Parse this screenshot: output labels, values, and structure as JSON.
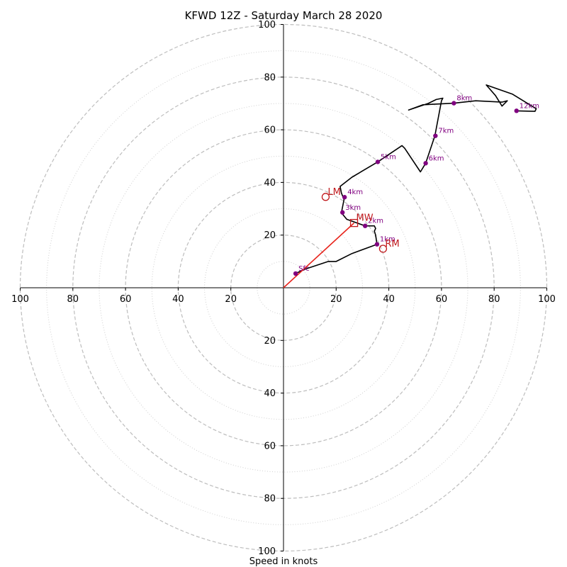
{
  "chart_data": {
    "type": "hodograph",
    "title": "KFWD 12Z - Saturday March 28 2020",
    "xlabel": "Speed in knots",
    "units": "knots",
    "ylim": [
      -100,
      100
    ],
    "xlim": [
      -100,
      100
    ],
    "major_rings": [
      20,
      40,
      60,
      80,
      100
    ],
    "minor_rings": [
      10,
      30,
      50,
      70,
      90
    ],
    "tick_values": [
      20,
      40,
      60,
      80,
      100
    ],
    "grid": true,
    "hodograph": [
      [
        4.6,
        5.4
      ],
      [
        8,
        7
      ],
      [
        17,
        10
      ],
      [
        20,
        10
      ],
      [
        26,
        13
      ],
      [
        35.5,
        16.5
      ],
      [
        35,
        20
      ],
      [
        34.5,
        21.5
      ],
      [
        35,
        22.5
      ],
      [
        34.5,
        23.5
      ],
      [
        31,
        23.5
      ],
      [
        24,
        26
      ],
      [
        22,
        28.5
      ],
      [
        23,
        33.5
      ],
      [
        22,
        36
      ],
      [
        21.5,
        38.5
      ],
      [
        26,
        42
      ],
      [
        35.8,
        47.8
      ],
      [
        45,
        54
      ],
      [
        46,
        53
      ],
      [
        52,
        44
      ],
      [
        54,
        47.3
      ],
      [
        57.5,
        57.7
      ],
      [
        60,
        71
      ],
      [
        60.5,
        72
      ],
      [
        58,
        71.5
      ],
      [
        55,
        70
      ],
      [
        47.5,
        67.5
      ],
      [
        53,
        69.5
      ],
      [
        64.7,
        70.1
      ],
      [
        73,
        71
      ],
      [
        83,
        70.5
      ],
      [
        85,
        71
      ],
      [
        83,
        69
      ],
      [
        80.5,
        73
      ],
      [
        77,
        77
      ],
      [
        87,
        73.5
      ],
      [
        96,
        68
      ],
      [
        95.5,
        67
      ],
      [
        88.5,
        67.2
      ]
    ],
    "height_points": [
      {
        "label": "Sfc",
        "u": 4.6,
        "v": 5.4
      },
      {
        "label": "1km",
        "u": 35.5,
        "v": 16.5
      },
      {
        "label": "2km",
        "u": 31,
        "v": 23.5
      },
      {
        "label": "3km",
        "u": 22.4,
        "v": 28.6
      },
      {
        "label": "4km",
        "u": 23.2,
        "v": 34.4
      },
      {
        "label": "5km",
        "u": 35.8,
        "v": 47.8
      },
      {
        "label": "6km",
        "u": 54,
        "v": 47.3
      },
      {
        "label": "7km",
        "u": 57.7,
        "v": 57.7
      },
      {
        "label": "8km",
        "u": 64.7,
        "v": 70.1
      },
      {
        "label": "12km",
        "u": 88.5,
        "v": 67.2
      }
    ],
    "storm_motion": [
      {
        "label": "LM",
        "u": 16,
        "v": 34.5,
        "marker": "circle"
      },
      {
        "label": "RM",
        "u": 37.8,
        "v": 14.8,
        "marker": "circle"
      },
      {
        "label": "MW",
        "u": 26.8,
        "v": 24.6,
        "marker": "square"
      }
    ],
    "shear_vector": {
      "from": [
        0,
        0
      ],
      "to": [
        26.8,
        24.6
      ]
    },
    "colors": {
      "hodograph": "#000000",
      "height_points": "#800080",
      "storm_motion": "#c0191c",
      "shear_vector": "#e8241c",
      "grid": "#bdbdbd"
    }
  }
}
